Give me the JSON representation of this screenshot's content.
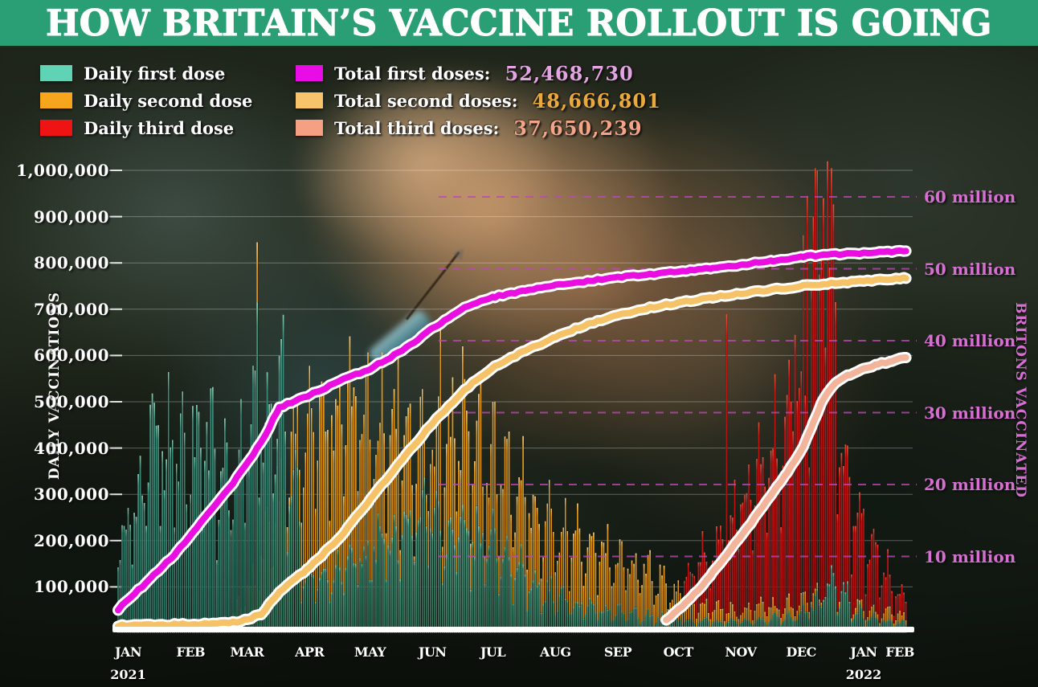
{
  "title": "HOW BRITAIN’S VACCINE ROLLOUT IS GOING",
  "colors": {
    "header_bg": "#2a9e74",
    "title_text": "#ffffff",
    "gridline": "rgba(255,255,255,0.30)",
    "dashed_gridline": "#b94ab2",
    "baseline": "#ffffff",
    "right_axis_text": "#d76fd3"
  },
  "legend": {
    "daily": [
      {
        "label": "Daily first dose",
        "swatch": "#5fd3b3"
      },
      {
        "label": "Daily second dose",
        "swatch": "#f6a51d"
      },
      {
        "label": "Daily third dose",
        "swatch": "#ee1414"
      }
    ],
    "totals": [
      {
        "label": "Total first doses:",
        "value": "52,468,730",
        "swatch": "#ea0ce6",
        "value_color": "#e3a5e1"
      },
      {
        "label": "Total second doses:",
        "value": "48,666,801",
        "swatch": "#f7c36b",
        "value_color": "#eaa93c"
      },
      {
        "label": "Total third doses:",
        "value": "37,650,239",
        "swatch": "#f5a083",
        "value_color": "#f4a489"
      }
    ]
  },
  "left_axis": {
    "title": "DAILY VACCINATIONS",
    "tick_labels": [
      "1,000,000",
      "900,000",
      "800,000",
      "700,000",
      "600,000",
      "500,000",
      "400,000",
      "300,000",
      "200,000",
      "100,000"
    ]
  },
  "right_axis": {
    "title": "BRITONS VACCINATED",
    "tick_labels": [
      "60 million",
      "50 million",
      "40 million",
      "30 million",
      "20 million",
      "10 million"
    ]
  },
  "chart_data": {
    "type": "bar+line",
    "start_date": "2021-01-10",
    "end_date": "2022-02-05",
    "n_days": 392,
    "left_axis": {
      "label": "DAILY VACCINATIONS",
      "ticks": [
        100000,
        200000,
        300000,
        400000,
        500000,
        600000,
        700000,
        800000,
        900000,
        1000000
      ],
      "ylim": [
        0,
        1050000
      ]
    },
    "right_axis": {
      "label": "BRITONS VACCINATED",
      "ticks_millions": [
        10,
        20,
        30,
        40,
        50,
        60
      ],
      "ylim_millions": [
        0,
        65
      ]
    },
    "x_months": [
      {
        "label": "JAN",
        "year_label": "2021",
        "day": 5
      },
      {
        "label": "FEB",
        "day": 36
      },
      {
        "label": "MAR",
        "day": 64
      },
      {
        "label": "APR",
        "day": 95
      },
      {
        "label": "MAY",
        "day": 125
      },
      {
        "label": "JUN",
        "day": 156
      },
      {
        "label": "JUL",
        "day": 186
      },
      {
        "label": "AUG",
        "day": 217
      },
      {
        "label": "SEP",
        "day": 248
      },
      {
        "label": "OCT",
        "day": 278
      },
      {
        "label": "NOV",
        "day": 309
      },
      {
        "label": "DEC",
        "day": 339
      },
      {
        "label": "JAN",
        "year_label": "2022",
        "day": 370
      },
      {
        "label": "FEB",
        "day": 388
      }
    ],
    "bar_series": [
      {
        "name": "Daily first dose",
        "color": "#3f9480",
        "color_top": "#8fd6bc",
        "color_bottom": "#2c7260",
        "weekly_avg_thousands": [
          230,
          330,
          440,
          410,
          390,
          430,
          400,
          360,
          380,
          420,
          470,
          520,
          330,
          120,
          110,
          130,
          145,
          165,
          195,
          225,
          240,
          250,
          235,
          215,
          230,
          210,
          185,
          155,
          135,
          112,
          92,
          76,
          66,
          58,
          52,
          47,
          42,
          38,
          34,
          30,
          27,
          26,
          25,
          26,
          28,
          30,
          33,
          36,
          44,
          68,
          115,
          85,
          45,
          32,
          26,
          22
        ]
      },
      {
        "name": "Daily second dose",
        "color": "#ee9d17",
        "color_top": "#ffd27a",
        "color_bottom": "#c47d0e",
        "weekly_avg_thousands": [
          25,
          18,
          12,
          10,
          12,
          14,
          18,
          24,
          55,
          110,
          200,
          320,
          390,
          430,
          465,
          495,
          505,
          475,
          445,
          415,
          395,
          385,
          405,
          425,
          435,
          405,
          375,
          345,
          315,
          285,
          252,
          222,
          202,
          188,
          176,
          166,
          152,
          132,
          112,
          92,
          72,
          62,
          56,
          52,
          53,
          56,
          59,
          63,
          68,
          76,
          86,
          72,
          56,
          48,
          43,
          38
        ]
      },
      {
        "name": "Daily third dose",
        "color": "#d51212",
        "color_top": "#f4573a",
        "color_bottom": "#a50d0d",
        "weekly_avg_thousands": [
          0,
          0,
          0,
          0,
          0,
          0,
          0,
          0,
          0,
          0,
          0,
          0,
          0,
          0,
          0,
          0,
          0,
          0,
          0,
          0,
          0,
          0,
          0,
          0,
          0,
          0,
          0,
          0,
          0,
          0,
          0,
          0,
          0,
          0,
          0,
          0,
          5,
          9,
          16,
          28,
          120,
          165,
          205,
          245,
          295,
          345,
          405,
          455,
          525,
          780,
          730,
          390,
          255,
          185,
          125,
          85
        ]
      }
    ],
    "spike_days_thousands": [
      [
        0,
        18,
        498
      ],
      [
        0,
        69,
        715
      ],
      [
        1,
        69,
        845
      ],
      [
        1,
        139,
        605
      ],
      [
        1,
        160,
        655
      ],
      [
        1,
        171,
        620
      ],
      [
        2,
        302,
        690
      ],
      [
        2,
        336,
        645
      ],
      [
        2,
        340,
        860
      ],
      [
        2,
        342,
        945
      ],
      [
        2,
        345,
        900
      ],
      [
        2,
        350,
        940
      ],
      [
        2,
        352,
        1020
      ]
    ],
    "line_series": [
      {
        "name": "Total first doses",
        "total": "52,468,730",
        "color": "#e80fe0",
        "casing": "#ffffff",
        "anchors_day_millions": [
          [
            0,
            2.6
          ],
          [
            14,
            6.4
          ],
          [
            29,
            10.5
          ],
          [
            43,
            15.4
          ],
          [
            57,
            20.2
          ],
          [
            71,
            25.8
          ],
          [
            80,
            30.7
          ],
          [
            95,
            32.4
          ],
          [
            110,
            34.4
          ],
          [
            125,
            36.1
          ],
          [
            141,
            38.6
          ],
          [
            156,
            41.7
          ],
          [
            172,
            44.7
          ],
          [
            187,
            46.1
          ],
          [
            202,
            47.0
          ],
          [
            217,
            47.7
          ],
          [
            234,
            48.3
          ],
          [
            250,
            48.9
          ],
          [
            264,
            49.2
          ],
          [
            280,
            49.7
          ],
          [
            295,
            50.1
          ],
          [
            310,
            50.6
          ],
          [
            325,
            51.1
          ],
          [
            340,
            51.7
          ],
          [
            356,
            52.0
          ],
          [
            370,
            52.2
          ],
          [
            391,
            52.47
          ]
        ]
      },
      {
        "name": "Total second doses",
        "total": "48,666,801",
        "color": "#f6c268",
        "casing": "#ffffff",
        "anchors_day_millions": [
          [
            0,
            0.4
          ],
          [
            22,
            0.5
          ],
          [
            43,
            0.6
          ],
          [
            57,
            0.8
          ],
          [
            64,
            1.2
          ],
          [
            71,
            2.0
          ],
          [
            80,
            5.0
          ],
          [
            95,
            8.5
          ],
          [
            110,
            12.6
          ],
          [
            125,
            17.9
          ],
          [
            141,
            23.5
          ],
          [
            156,
            28.5
          ],
          [
            172,
            33.2
          ],
          [
            187,
            36.5
          ],
          [
            202,
            38.6
          ],
          [
            217,
            40.5
          ],
          [
            234,
            42.4
          ],
          [
            250,
            43.7
          ],
          [
            264,
            44.6
          ],
          [
            280,
            45.4
          ],
          [
            295,
            46.0
          ],
          [
            310,
            46.6
          ],
          [
            325,
            47.1
          ],
          [
            340,
            47.6
          ],
          [
            356,
            48.0
          ],
          [
            370,
            48.3
          ],
          [
            391,
            48.67
          ]
        ]
      },
      {
        "name": "Total third doses",
        "total": "37,650,239",
        "color": "#f2b49a",
        "casing": "#ffffff",
        "anchors_day_millions": [
          [
            272,
            1.2
          ],
          [
            280,
            3.0
          ],
          [
            288,
            5.3
          ],
          [
            295,
            7.7
          ],
          [
            302,
            10.1
          ],
          [
            310,
            13.2
          ],
          [
            318,
            16.1
          ],
          [
            325,
            18.9
          ],
          [
            332,
            21.6
          ],
          [
            340,
            25.2
          ],
          [
            345,
            28.6
          ],
          [
            350,
            31.9
          ],
          [
            356,
            34.1
          ],
          [
            363,
            35.3
          ],
          [
            370,
            36.1
          ],
          [
            377,
            36.7
          ],
          [
            384,
            37.2
          ],
          [
            391,
            37.65
          ]
        ]
      }
    ]
  }
}
